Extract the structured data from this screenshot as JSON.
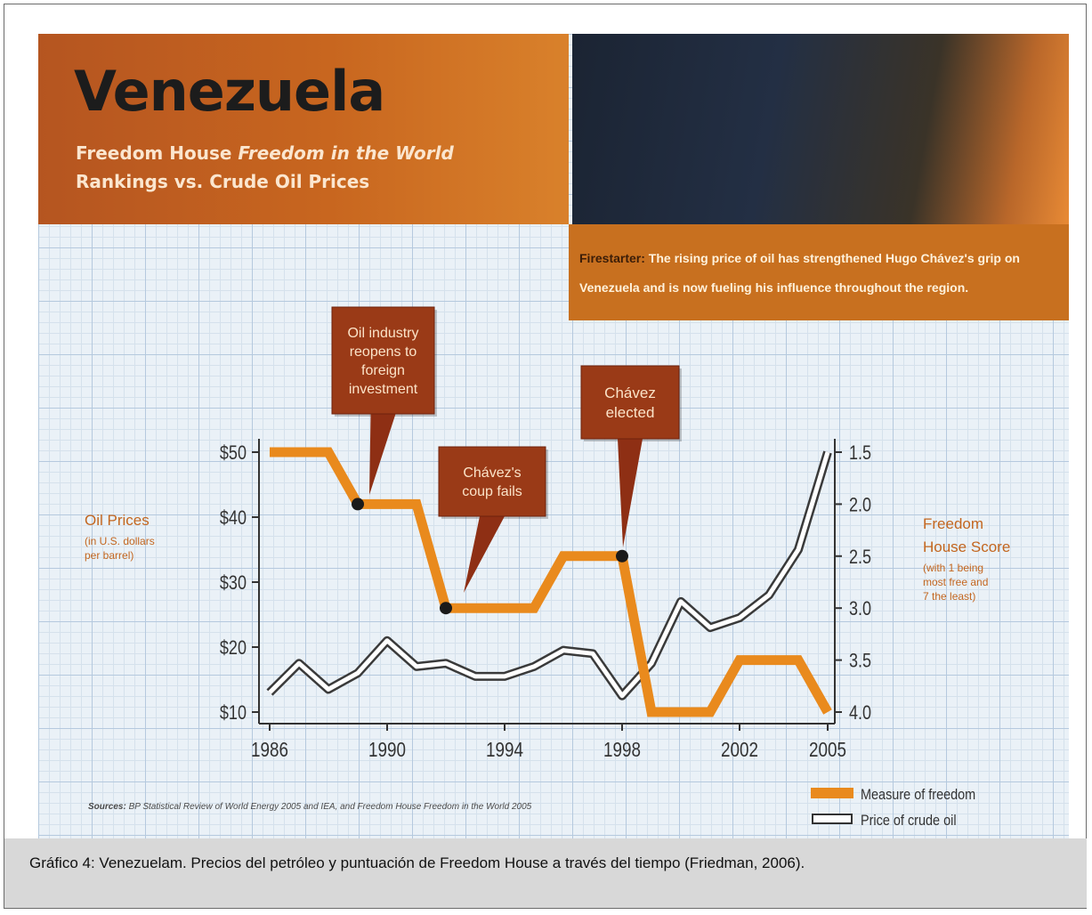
{
  "figure": {
    "title": "Venezuela",
    "subtitle_part1": "Freedom House ",
    "subtitle_italic": "Freedom in the World",
    "subtitle_part2": "Rankings vs. Crude Oil Prices",
    "callout_lead": "Firestarter:",
    "callout_text": " The rising price of oil has strengthened Hugo Chávez's grip on Venezuela and is now fueling his influence throughout the region."
  },
  "caption": "Gráfico 4: Venezuelam. Precios del petróleo y puntuación de Freedom House a través del tiempo (Friedman, 2006).",
  "chart_data": {
    "type": "line",
    "xlabel": "",
    "x_ticks": [
      "1986",
      "1990",
      "1994",
      "1998",
      "2002",
      "2005"
    ],
    "y_left": {
      "label_lines": [
        "Oil Prices",
        "(in U.S. dollars",
        "per barrel)"
      ],
      "ticks": [
        "$50",
        "$40",
        "$30",
        "$20",
        "$10"
      ],
      "ylim": [
        10,
        50
      ]
    },
    "y_right": {
      "label_lines": [
        "Freedom",
        "House Score",
        "(with 1 being",
        "most free and",
        "7 the least)"
      ],
      "ticks": [
        "1.5",
        "2.0",
        "2.5",
        "3.0",
        "3.5",
        "4.0"
      ],
      "ylim": [
        4.0,
        1.5
      ]
    },
    "series": [
      {
        "name": "Measure of freedom",
        "axis": "right",
        "color": "#e98a1d",
        "points": [
          [
            1986,
            1.5
          ],
          [
            1988,
            1.5
          ],
          [
            1989,
            2.0
          ],
          [
            1991,
            2.0
          ],
          [
            1992,
            3.0
          ],
          [
            1995,
            3.0
          ],
          [
            1996,
            2.5
          ],
          [
            1998,
            2.5
          ],
          [
            1999,
            4.0
          ],
          [
            2001,
            4.0
          ],
          [
            2002,
            3.5
          ],
          [
            2004,
            3.5
          ],
          [
            2005,
            4.0
          ]
        ]
      },
      {
        "name": "Price of crude oil",
        "axis": "left",
        "color": "#ffffff",
        "outline": "#3a3a3a",
        "points": [
          [
            1986,
            13
          ],
          [
            1987,
            17.5
          ],
          [
            1988,
            13.5
          ],
          [
            1989,
            16
          ],
          [
            1990,
            21
          ],
          [
            1991,
            17
          ],
          [
            1992,
            17.5
          ],
          [
            1993,
            15.5
          ],
          [
            1994,
            15.5
          ],
          [
            1995,
            17
          ],
          [
            1996,
            19.5
          ],
          [
            1997,
            19
          ],
          [
            1998,
            12.5
          ],
          [
            1999,
            17.5
          ],
          [
            2000,
            27
          ],
          [
            2001,
            23
          ],
          [
            2002,
            24.5
          ],
          [
            2003,
            28
          ],
          [
            2004,
            35
          ],
          [
            2005,
            50
          ]
        ]
      }
    ],
    "markers": [
      {
        "year": 1989,
        "value": 2.0,
        "label_lines": [
          "Oil industry",
          "reopens to",
          "foreign",
          "investment"
        ]
      },
      {
        "year": 1992,
        "value": 3.0,
        "label_lines": [
          "Chávez's",
          "coup fails"
        ]
      },
      {
        "year": 1998,
        "value": 2.5,
        "label_lines": [
          "Chávez",
          "elected"
        ]
      }
    ],
    "legend": {
      "placement": "bottom-right"
    },
    "source_lead": "Sources:",
    "source_text": " BP Statistical Review of World Energy 2005 and IEA, and Freedom House Freedom in the World 2005",
    "grid": true
  }
}
